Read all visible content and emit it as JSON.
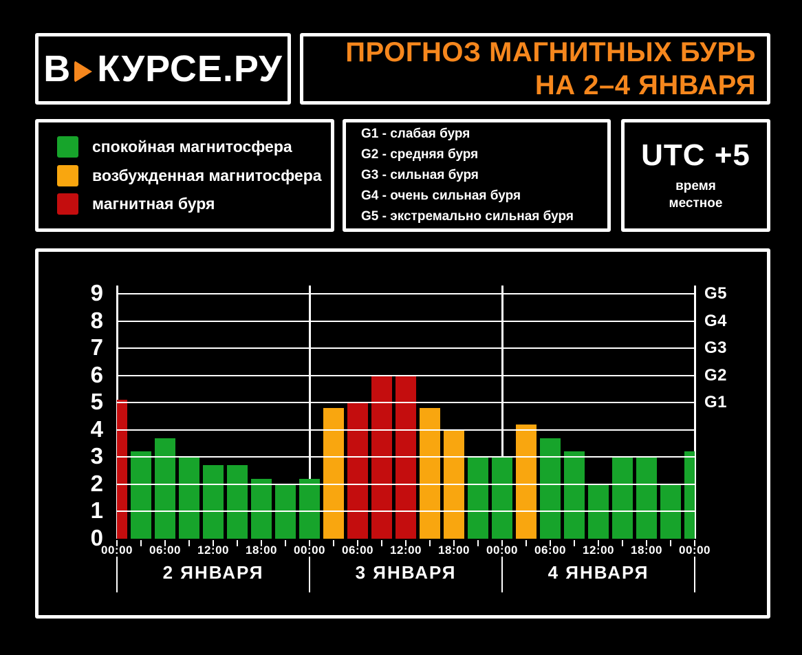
{
  "colors": {
    "accent": "#f6871d",
    "calm": "#17a42b",
    "active": "#f9a60f",
    "storm": "#c40d0e",
    "grid": "#ffffff",
    "background": "#000000"
  },
  "logo": {
    "text_left": "В",
    "text_right": "КУРСЕ.РУ"
  },
  "title": {
    "line1": "ПРОГНОЗ МАГНИТНЫХ БУРЬ",
    "line2": "НА 2–4 ЯНВАРЯ"
  },
  "legend": {
    "items": [
      {
        "level": "calm",
        "label": "спокойная магнитосфера"
      },
      {
        "level": "active",
        "label": "возбужденная магнитосфера"
      },
      {
        "level": "storm",
        "label": "магнитная буря"
      }
    ]
  },
  "storm_scale": {
    "items": [
      "G1 - слабая буря",
      "G2 - средняя буря",
      "G3 - сильная буря",
      "G4 - очень сильная буря",
      "G5 - экстремально сильная буря"
    ]
  },
  "timezone": {
    "value": "UTC +5",
    "note": "время\nместное"
  },
  "chart_data": {
    "type": "bar",
    "title": "Прогноз магнитных бурь на 2–4 января (Kp по 3-часовым интервалам)",
    "ylim": [
      0,
      9
    ],
    "y_ticks": [
      0,
      1,
      2,
      3,
      4,
      5,
      6,
      7,
      8,
      9
    ],
    "grid": true,
    "g_levels": [
      {
        "label": "G1",
        "value": 5
      },
      {
        "label": "G2",
        "value": 6
      },
      {
        "label": "G3",
        "value": 7
      },
      {
        "label": "G4",
        "value": 8
      },
      {
        "label": "G5",
        "value": 9
      }
    ],
    "time_tick_labels": [
      "00:00",
      "06:00",
      "12:00",
      "18:00"
    ],
    "end_tick_label": "00:00",
    "hours_per_day": 24,
    "bar_step_hours": 3,
    "days": [
      "2 ЯНВАРЯ",
      "3 ЯНВАРЯ",
      "4 ЯНВАРЯ"
    ],
    "bars": [
      {
        "hour": 0,
        "value": 5.1,
        "level": "storm"
      },
      {
        "hour": 3,
        "value": 3.2,
        "level": "calm"
      },
      {
        "hour": 6,
        "value": 3.7,
        "level": "calm"
      },
      {
        "hour": 9,
        "value": 3.0,
        "level": "calm"
      },
      {
        "hour": 12,
        "value": 2.7,
        "level": "calm"
      },
      {
        "hour": 15,
        "value": 2.7,
        "level": "calm"
      },
      {
        "hour": 18,
        "value": 2.2,
        "level": "calm"
      },
      {
        "hour": 21,
        "value": 2.0,
        "level": "calm"
      },
      {
        "hour": 24,
        "value": 2.2,
        "level": "calm"
      },
      {
        "hour": 27,
        "value": 4.8,
        "level": "active"
      },
      {
        "hour": 30,
        "value": 5.0,
        "level": "storm"
      },
      {
        "hour": 33,
        "value": 6.0,
        "level": "storm"
      },
      {
        "hour": 36,
        "value": 6.0,
        "level": "storm"
      },
      {
        "hour": 39,
        "value": 4.8,
        "level": "active"
      },
      {
        "hour": 42,
        "value": 4.0,
        "level": "active"
      },
      {
        "hour": 45,
        "value": 3.0,
        "level": "calm"
      },
      {
        "hour": 48,
        "value": 3.0,
        "level": "calm"
      },
      {
        "hour": 51,
        "value": 4.2,
        "level": "active"
      },
      {
        "hour": 54,
        "value": 3.7,
        "level": "calm"
      },
      {
        "hour": 57,
        "value": 3.2,
        "level": "calm"
      },
      {
        "hour": 60,
        "value": 2.0,
        "level": "calm"
      },
      {
        "hour": 63,
        "value": 3.0,
        "level": "calm"
      },
      {
        "hour": 66,
        "value": 3.0,
        "level": "calm"
      },
      {
        "hour": 69,
        "value": 2.0,
        "level": "calm"
      },
      {
        "hour": 72,
        "value": 3.2,
        "level": "calm"
      }
    ]
  }
}
